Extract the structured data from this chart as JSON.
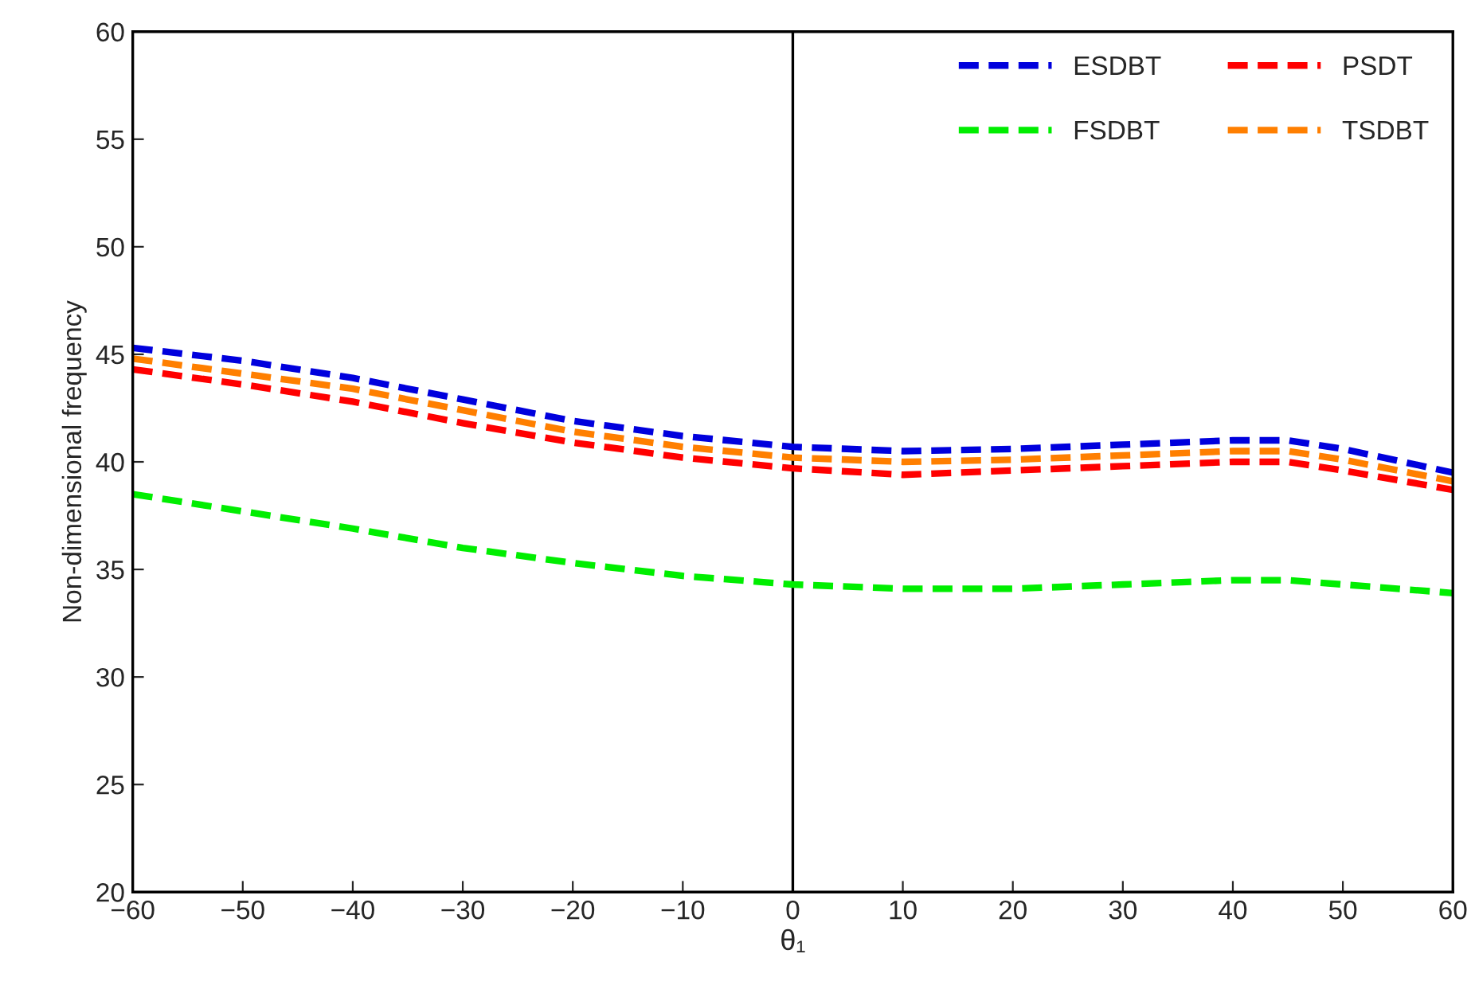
{
  "chart_data": {
    "type": "line",
    "xlabel": "θ₁",
    "ylabel": "Non-dimensional frequency",
    "x": [
      -60,
      -50,
      -40,
      -30,
      -20,
      -10,
      0,
      10,
      20,
      30,
      40,
      45,
      50,
      60
    ],
    "series": [
      {
        "name": "ESDBT",
        "color": "#0000dd",
        "values": [
          45.3,
          44.7,
          43.9,
          42.9,
          41.9,
          41.2,
          40.7,
          40.5,
          40.6,
          40.8,
          41.0,
          41.0,
          40.6,
          39.5
        ]
      },
      {
        "name": "PSDT",
        "color": "#ff0000",
        "values": [
          44.3,
          43.6,
          42.8,
          41.8,
          40.9,
          40.2,
          39.7,
          39.4,
          39.6,
          39.8,
          40.0,
          40.0,
          39.6,
          38.7
        ]
      },
      {
        "name": "FSDBT",
        "color": "#00ee00",
        "values": [
          38.5,
          37.7,
          36.9,
          36.0,
          35.3,
          34.7,
          34.3,
          34.1,
          34.1,
          34.3,
          34.5,
          34.5,
          34.3,
          33.9
        ]
      },
      {
        "name": "TSDBT",
        "color": "#ff7f00",
        "values": [
          44.8,
          44.1,
          43.4,
          42.4,
          41.4,
          40.7,
          40.2,
          40.0,
          40.1,
          40.3,
          40.5,
          40.5,
          40.1,
          39.1
        ]
      }
    ],
    "xlim": [
      -60,
      60
    ],
    "xticks": [
      {
        "value": -60,
        "label": "−60"
      },
      {
        "value": -50,
        "label": "−50"
      },
      {
        "value": -40,
        "label": "−40"
      },
      {
        "value": -30,
        "label": "−30"
      },
      {
        "value": -20,
        "label": "−20"
      },
      {
        "value": -10,
        "label": "−10"
      },
      0,
      10,
      20,
      30,
      40,
      50,
      60
    ],
    "ylim": [
      20,
      60
    ],
    "yticks": [
      20,
      25,
      30,
      35,
      40,
      45,
      50,
      55,
      60
    ],
    "ref_lines": [
      {
        "axis": "x",
        "value": 0,
        "color": "#000000",
        "line_style": "solid"
      }
    ],
    "grid": false,
    "legend": "top right",
    "marker": "none",
    "line_style": "dashed"
  }
}
